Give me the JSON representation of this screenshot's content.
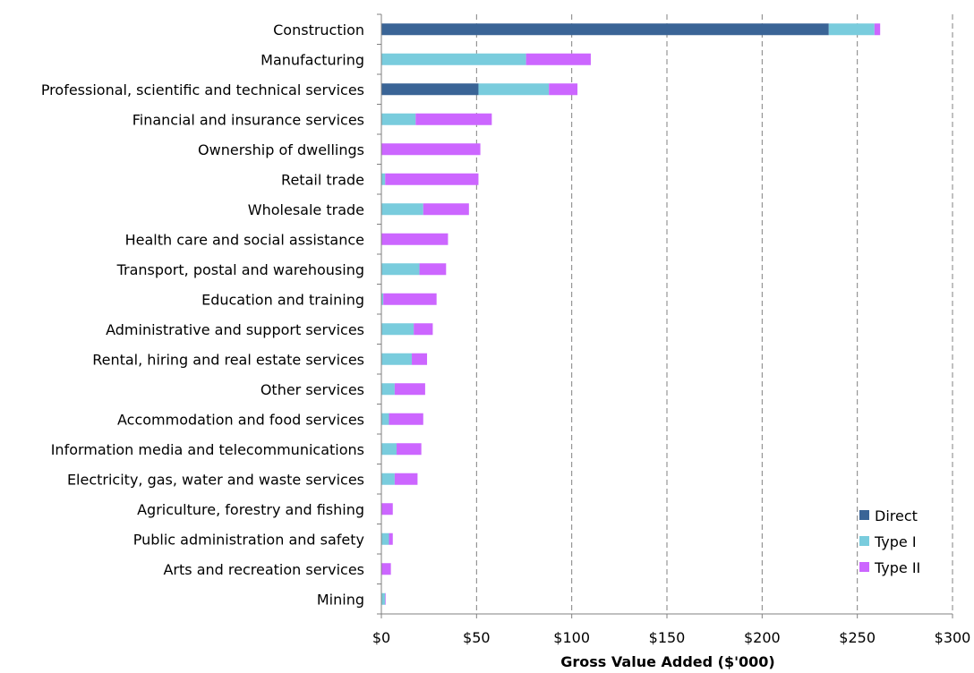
{
  "chart_data": {
    "type": "bar",
    "orientation": "horizontal",
    "stacked": true,
    "xlabel": "Gross Value Added ($'000)",
    "ylabel": "",
    "xlim": [
      0,
      300
    ],
    "x_ticks": [
      "$0",
      "$50",
      "$100",
      "$150",
      "$200",
      "$250",
      "$300"
    ],
    "x_tick_values": [
      0,
      50,
      100,
      150,
      200,
      250,
      300
    ],
    "grid": "vertical dashed",
    "legend_position": "bottom-right",
    "categories": [
      "Construction",
      "Manufacturing",
      "Professional, scientific and technical services",
      "Financial and insurance services",
      "Ownership of dwellings",
      "Retail trade",
      "Wholesale trade",
      "Health care and social assistance",
      "Transport, postal and warehousing",
      "Education and training",
      "Administrative and support services",
      "Rental, hiring and real estate services",
      "Other services",
      "Accommodation and food services",
      "Information media and telecommunications",
      "Electricity, gas, water and waste services",
      "Agriculture, forestry and fishing",
      "Public administration and safety",
      "Arts and recreation services",
      "Mining"
    ],
    "series": [
      {
        "name": "Direct",
        "color": "#3a6496",
        "values": [
          235,
          0,
          51,
          0,
          0,
          0,
          0,
          0,
          0,
          0,
          0,
          0,
          0,
          0,
          0,
          0,
          0,
          0,
          0,
          0
        ]
      },
      {
        "name": "Type I",
        "color": "#79ccdd",
        "values": [
          24,
          76,
          37,
          18,
          0,
          2,
          22,
          0,
          20,
          1,
          17,
          16,
          7,
          4,
          8,
          7,
          0,
          4,
          0,
          2
        ]
      },
      {
        "name": "Type II",
        "color": "#cc66ff",
        "values": [
          3,
          34,
          15,
          40,
          52,
          49,
          24,
          35,
          14,
          28,
          10,
          8,
          16,
          18,
          13,
          12,
          6,
          2,
          5,
          0.3
        ]
      }
    ]
  }
}
